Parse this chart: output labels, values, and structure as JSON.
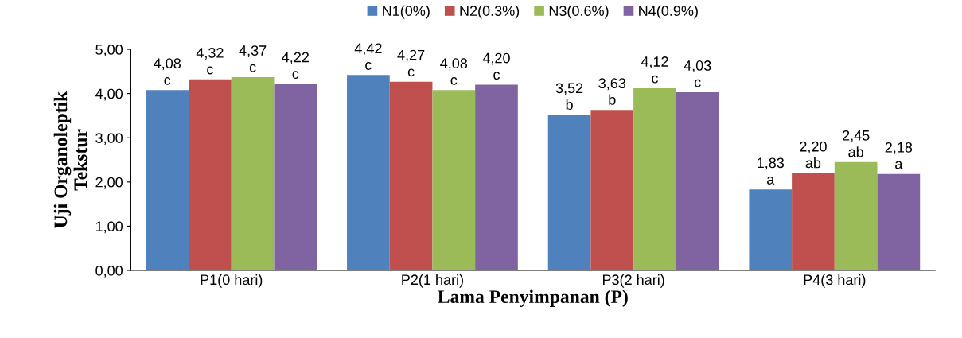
{
  "chart_data": {
    "type": "bar",
    "xlabel": "Lama Penyimpanan (P)",
    "ylabel": "Uji Organoleptik\nTekstur",
    "categories": [
      "P1(0 hari)",
      "P2(1 hari)",
      "P3(2 hari)",
      "P4(3 hari)"
    ],
    "series": [
      {
        "name": "N1(0%)",
        "color": "#4f81bd",
        "values": [
          4.08,
          4.42,
          3.52,
          1.83
        ],
        "value_labels": [
          "4,08\nc",
          "4,42\nc",
          "3,52\nb",
          "1,83\na"
        ]
      },
      {
        "name": "N2(0.3%)",
        "color": "#c0504d",
        "values": [
          4.32,
          4.27,
          3.63,
          2.2
        ],
        "value_labels": [
          "4,32\nc",
          "4,27\nc",
          "3,63\nb",
          "2,20\nab"
        ]
      },
      {
        "name": "N3(0.6%)",
        "color": "#9bbb59",
        "values": [
          4.37,
          4.08,
          4.12,
          2.45
        ],
        "value_labels": [
          "4,37\nc",
          "4,08\nc",
          "4,12\nc",
          "2,45\nab"
        ]
      },
      {
        "name": "N4(0.9%)",
        "color": "#8064a2",
        "values": [
          4.22,
          4.2,
          4.03,
          2.18
        ],
        "value_labels": [
          "4,22\nc",
          "4,20\nc",
          "4,03\nc",
          "2,18\na"
        ]
      }
    ],
    "ylim": [
      0,
      5
    ],
    "yticks": [
      {
        "value": 0,
        "label": "0,00"
      },
      {
        "value": 1,
        "label": "1,00"
      },
      {
        "value": 2,
        "label": "2,00"
      },
      {
        "value": 3,
        "label": "3,00"
      },
      {
        "value": 4,
        "label": "4,00"
      },
      {
        "value": 5,
        "label": "5,00"
      }
    ],
    "grid": false,
    "legend": "top"
  }
}
